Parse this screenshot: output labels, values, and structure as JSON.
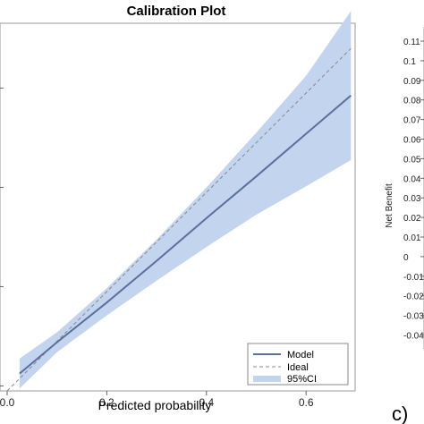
{
  "chart_data": [
    {
      "type": "line",
      "title": "Calibration Plot",
      "xlabel": "Predicted probability",
      "ylabel": "",
      "xlim": [
        0.0,
        0.7
      ],
      "ylim": [
        0.0,
        0.7
      ],
      "x_ticks": [
        "0.0",
        "0.2",
        "0.4",
        "0.6"
      ],
      "grid": false,
      "legend_position": "bottom-right",
      "series": [
        {
          "name": "Model",
          "x": [
            0.025,
            0.1,
            0.2,
            0.3,
            0.4,
            0.5,
            0.6,
            0.69
          ],
          "y": [
            0.035,
            0.098,
            0.178,
            0.262,
            0.348,
            0.432,
            0.518,
            0.595
          ],
          "color": "#5a6f9e",
          "style": "solid"
        },
        {
          "name": "Ideal",
          "x": [
            0.0,
            0.69
          ],
          "y": [
            0.0,
            0.69
          ],
          "color": "#888888",
          "style": "dashed"
        }
      ],
      "band": {
        "name": "95%CI",
        "x": [
          0.025,
          0.1,
          0.2,
          0.3,
          0.4,
          0.5,
          0.6,
          0.69
        ],
        "lower": [
          0.005,
          0.078,
          0.152,
          0.222,
          0.29,
          0.355,
          0.412,
          0.465
        ],
        "upper": [
          0.065,
          0.118,
          0.207,
          0.305,
          0.41,
          0.52,
          0.635,
          0.765
        ],
        "color": "#c3d4ee"
      }
    },
    {
      "type": "line",
      "ylabel": "Net Benefit",
      "y_ticks": [
        "0.11",
        "0.1",
        "0.09",
        "0.08",
        "0.07",
        "0.06",
        "0.05",
        "0.04",
        "0.03",
        "0.02",
        "0.01",
        "0",
        "-0.01",
        "-0.02",
        "-0.03",
        "-0.04"
      ],
      "panel_label": "c)"
    }
  ]
}
